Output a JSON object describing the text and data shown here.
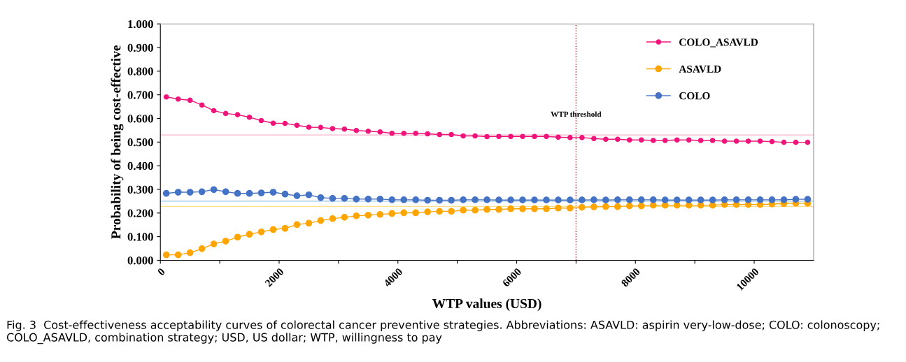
{
  "chart_data": {
    "type": "line",
    "xlabel": "WTP values (USD)",
    "ylabel": "Probability of being cost-effective",
    "x": [
      100,
      300,
      500,
      700,
      900,
      1100,
      1300,
      1500,
      1700,
      1900,
      2100,
      2300,
      2500,
      2700,
      2900,
      3100,
      3300,
      3500,
      3700,
      3900,
      4100,
      4300,
      4500,
      4700,
      4900,
      5100,
      5300,
      5500,
      5700,
      5900,
      6100,
      6300,
      6500,
      6700,
      6900,
      7100,
      7300,
      7500,
      7700,
      7900,
      8100,
      8300,
      8500,
      8700,
      8900,
      9100,
      9300,
      9500,
      9700,
      9900,
      10100,
      10300,
      10500,
      10700,
      10900
    ],
    "series": [
      {
        "name": "COLO_ASAVLD",
        "color": "#f0147a",
        "values": [
          0.691,
          0.682,
          0.677,
          0.657,
          0.633,
          0.621,
          0.616,
          0.605,
          0.591,
          0.58,
          0.579,
          0.571,
          0.563,
          0.562,
          0.557,
          0.555,
          0.549,
          0.546,
          0.543,
          0.537,
          0.537,
          0.537,
          0.535,
          0.532,
          0.532,
          0.526,
          0.526,
          0.523,
          0.524,
          0.524,
          0.524,
          0.524,
          0.524,
          0.521,
          0.519,
          0.519,
          0.515,
          0.512,
          0.512,
          0.509,
          0.509,
          0.507,
          0.507,
          0.509,
          0.509,
          0.507,
          0.507,
          0.504,
          0.504,
          0.504,
          0.504,
          0.502,
          0.499,
          0.499,
          0.499
        ]
      },
      {
        "name": "ASAVLD",
        "color": "#ffa500",
        "values": [
          0.023,
          0.023,
          0.032,
          0.049,
          0.069,
          0.081,
          0.098,
          0.11,
          0.12,
          0.13,
          0.135,
          0.151,
          0.157,
          0.168,
          0.176,
          0.182,
          0.188,
          0.191,
          0.194,
          0.198,
          0.201,
          0.201,
          0.205,
          0.207,
          0.207,
          0.212,
          0.212,
          0.215,
          0.215,
          0.218,
          0.218,
          0.218,
          0.218,
          0.221,
          0.221,
          0.224,
          0.226,
          0.227,
          0.227,
          0.23,
          0.23,
          0.233,
          0.233,
          0.233,
          0.233,
          0.233,
          0.233,
          0.236,
          0.236,
          0.236,
          0.236,
          0.238,
          0.24,
          0.241,
          0.241
        ]
      },
      {
        "name": "COLO",
        "color": "#4472c4",
        "values": [
          0.283,
          0.288,
          0.288,
          0.29,
          0.299,
          0.29,
          0.283,
          0.283,
          0.285,
          0.288,
          0.28,
          0.273,
          0.277,
          0.265,
          0.262,
          0.262,
          0.259,
          0.259,
          0.259,
          0.256,
          0.256,
          0.256,
          0.254,
          0.254,
          0.254,
          0.256,
          0.256,
          0.256,
          0.255,
          0.255,
          0.255,
          0.255,
          0.255,
          0.255,
          0.255,
          0.255,
          0.256,
          0.255,
          0.256,
          0.256,
          0.256,
          0.256,
          0.255,
          0.255,
          0.255,
          0.255,
          0.255,
          0.256,
          0.256,
          0.256,
          0.256,
          0.256,
          0.256,
          0.258,
          0.258
        ]
      }
    ],
    "xlim": [
      0,
      11000
    ],
    "xticks": [
      0,
      {
        "value": 1000,
        "label": null
      },
      2000,
      {
        "value": 3000,
        "label": null
      },
      4000,
      {
        "value": 5000,
        "label": null
      },
      6000,
      {
        "value": 7000,
        "label": null
      },
      8000,
      {
        "value": 9000,
        "label": null
      },
      10000
    ],
    "ylim": [
      0,
      1
    ],
    "yticks": [
      {
        "value": 0,
        "label": "0.000"
      },
      {
        "value": 0.1,
        "label": "0.100"
      },
      {
        "value": 0.2,
        "label": "0.200"
      },
      {
        "value": 0.3,
        "label": "0.300"
      },
      {
        "value": 0.4,
        "label": "0.400"
      },
      {
        "value": 0.5,
        "label": "0.500"
      },
      {
        "value": 0.6,
        "label": "0.600"
      },
      {
        "value": 0.7,
        "label": "0.700"
      },
      {
        "value": 0.8,
        "label": "0.800"
      },
      {
        "value": 0.9,
        "label": "0.900"
      },
      {
        "value": 1,
        "label": "1.000"
      }
    ],
    "ref_lines": [
      {
        "axis": "x",
        "value": 7000,
        "label": "WTP threshold",
        "color": "#ff0000",
        "line_style": "dotted"
      },
      {
        "axis": "y",
        "value": 0.53,
        "color": "#f7b3cc"
      },
      {
        "axis": "y",
        "value": 0.25,
        "color": "#9dc3e6"
      },
      {
        "axis": "y",
        "value": 0.228,
        "color": "#ffe08a"
      }
    ],
    "marker": "circle",
    "line_style": "solid",
    "grid": false,
    "legend": "top right",
    "annotations": [
      "Fig. 3  Cost-effectiveness acceptability curves of colorectal cancer preventive strategies. Abbreviations: ASAVLD: aspirin very-low-dose; COLO: colonoscopy; COLO_ASAVLD, combination strategy; USD, US dollar; WTP, willingness to pay"
    ]
  }
}
